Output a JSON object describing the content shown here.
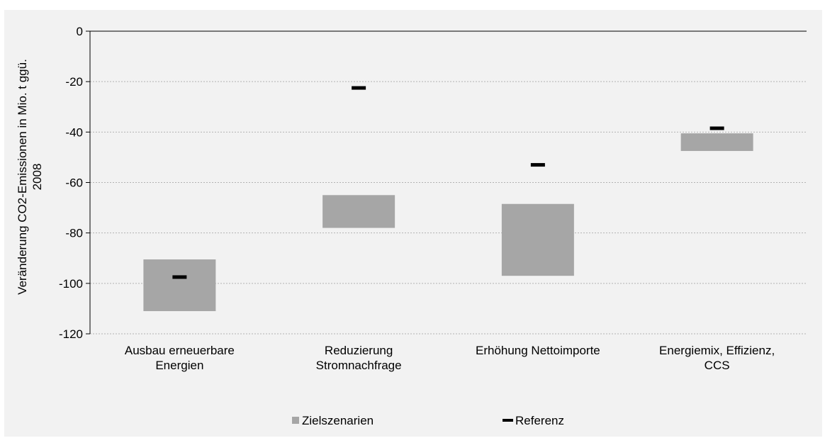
{
  "chart_data": {
    "type": "bar",
    "title": "",
    "ylabel_lines": [
      "Veränderung  CO2-Emissionen in Mio. t ggü.",
      "2008"
    ],
    "ylim": [
      -120,
      0
    ],
    "yticks": [
      0,
      -20,
      -40,
      -60,
      -80,
      -100,
      -120
    ],
    "grid": true,
    "legend_position": "bottom",
    "categories": [
      {
        "lines": [
          "Ausbau erneuerbare",
          "Energien"
        ]
      },
      {
        "lines": [
          "Reduzierung",
          "Stromnachfrage"
        ]
      },
      {
        "lines": [
          "Erhöhung Nettoimporte"
        ]
      },
      {
        "lines": [
          "Energiemix, Effizienz,",
          "CCS"
        ]
      }
    ],
    "series": [
      {
        "name": "Zielszenarien",
        "type": "floating-bar",
        "color": "#a6a6a6",
        "ranges": [
          [
            -111,
            -90.5
          ],
          [
            -78,
            -65
          ],
          [
            -97,
            -68.5
          ],
          [
            -47.5,
            -40.5
          ]
        ]
      },
      {
        "name": "Referenz",
        "type": "marker",
        "color": "#000000",
        "values": [
          -97.5,
          -22.5,
          -53,
          -38.5
        ]
      }
    ]
  }
}
